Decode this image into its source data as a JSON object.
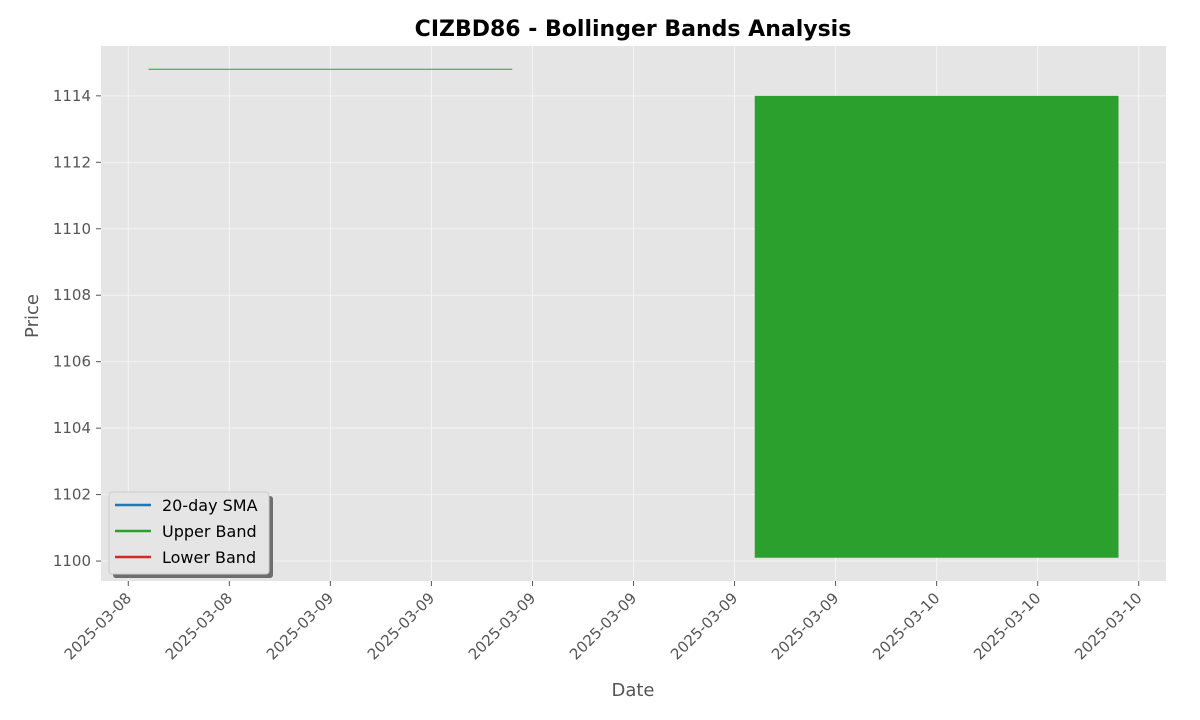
{
  "chart_data": {
    "type": "line",
    "title": "CIZBD86 - Bollinger Bands Analysis",
    "xlabel": "Date",
    "ylabel": "Price",
    "x_tick_labels": [
      "2025-03-08",
      "2025-03-08",
      "2025-03-09",
      "2025-03-09",
      "2025-03-09",
      "2025-03-09",
      "2025-03-09",
      "2025-03-09",
      "2025-03-10",
      "2025-03-10",
      "2025-03-10"
    ],
    "y_ticks": [
      1100,
      1102,
      1104,
      1106,
      1108,
      1110,
      1112,
      1114
    ],
    "ylim": [
      1099.4,
      1115.5
    ],
    "xlim": [
      -0.27,
      10.27
    ],
    "grid": true,
    "legend_position": "lower-left",
    "series": [
      {
        "name": "20-day SMA",
        "color": "#1f77b4",
        "points": []
      },
      {
        "name": "Upper Band",
        "color": "#2ca02c",
        "points": [
          [
            0.2,
            1114.8
          ],
          [
            3.8,
            1114.8
          ]
        ]
      },
      {
        "name": "Lower Band",
        "color": "#d62728",
        "points": []
      }
    ],
    "band_fill": {
      "color": "#2ca02c",
      "x": [
        6.2,
        9.8
      ],
      "y": [
        1100.1,
        1114.0
      ]
    }
  }
}
